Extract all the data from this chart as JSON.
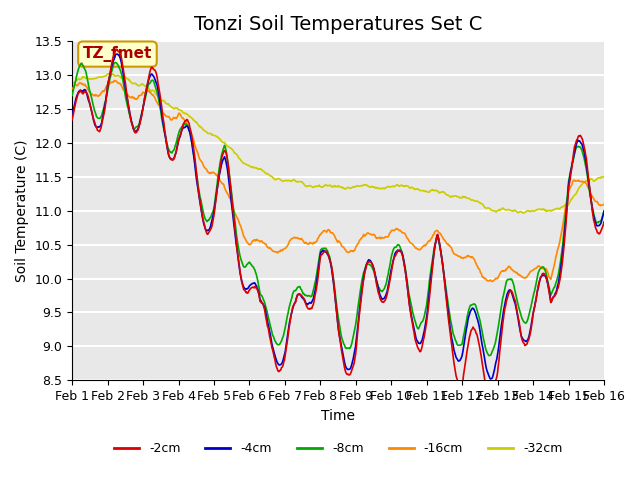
{
  "title": "Tonzi Soil Temperatures Set C",
  "xlabel": "Time",
  "ylabel": "Soil Temperature (C)",
  "ylim": [
    8.5,
    13.5
  ],
  "yticks": [
    8.5,
    9.0,
    9.5,
    10.0,
    10.5,
    11.0,
    11.5,
    12.0,
    12.5,
    13.0,
    13.5
  ],
  "xtick_labels": [
    "Feb 1",
    "Feb 2",
    "Feb 3",
    "Feb 4",
    "Feb 5",
    "Feb 6",
    "Feb 7",
    "Feb 8",
    "Feb 9",
    "Feb 10",
    "Feb 11",
    "Feb 12",
    "Feb 13",
    "Feb 14",
    "Feb 15",
    "Feb 16"
  ],
  "legend_labels": [
    "-2cm",
    "-4cm",
    "-8cm",
    "-16cm",
    "-32cm"
  ],
  "legend_colors": [
    "#dd0000",
    "#0000cc",
    "#00aa00",
    "#ff8800",
    "#cccc00"
  ],
  "line_colors": [
    "#dd0000",
    "#0000cc",
    "#00aa00",
    "#ff8800",
    "#cccc00"
  ],
  "annotation_text": "TZ_fmet",
  "annotation_bg": "#ffffcc",
  "annotation_border": "#cc9900",
  "bg_color": "#e8e8e8",
  "grid_color": "#ffffff",
  "title_fontsize": 14,
  "label_fontsize": 10,
  "tick_fontsize": 9
}
